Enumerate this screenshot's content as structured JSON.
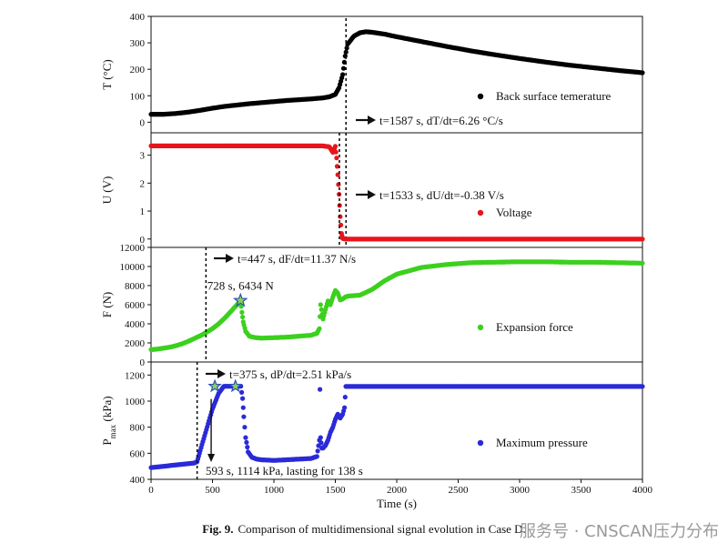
{
  "figure": {
    "caption_label": "Fig. 9.",
    "caption_text": "Comparison of multidimensional signal evolution in Case D.",
    "watermark": "服务号 · CNSCAN压力分布"
  },
  "chart_data": {
    "type": "scatter",
    "shared_x": {
      "label": "Time (s)",
      "range": [
        0,
        4000
      ],
      "ticks": [
        0,
        500,
        1000,
        1500,
        2000,
        2500,
        3000,
        3500,
        4000
      ],
      "tick_labels": [
        "0",
        "500",
        "1000",
        "1500",
        "2000",
        "2500",
        "3000",
        "3500",
        "4000"
      ]
    },
    "panels": [
      {
        "id": "temperature",
        "ylabel": "T (°C)",
        "ylim": [
          -40,
          400
        ],
        "ticks": [
          0,
          100,
          200,
          300,
          400
        ],
        "tick_labels": [
          "0",
          "100",
          "200",
          "300",
          "400"
        ],
        "color": "#000000",
        "legend": "Back surface temerature",
        "event": {
          "time": 1587,
          "label": "t=1587 s, dT/dt=6.26 °C/s"
        },
        "x": [
          0,
          100,
          200,
          300,
          400,
          500,
          600,
          700,
          800,
          900,
          1000,
          1100,
          1200,
          1300,
          1400,
          1450,
          1500,
          1530,
          1560,
          1580,
          1600,
          1650,
          1700,
          1750,
          1800,
          1900,
          2000,
          2200,
          2400,
          2600,
          2800,
          3000,
          3200,
          3400,
          3600,
          3800,
          4000
        ],
        "y": [
          30,
          30,
          33,
          38,
          45,
          53,
          60,
          65,
          70,
          74,
          78,
          82,
          85,
          88,
          92,
          96,
          105,
          130,
          180,
          250,
          295,
          325,
          338,
          342,
          340,
          333,
          323,
          305,
          287,
          270,
          255,
          241,
          228,
          216,
          206,
          196,
          187
        ]
      },
      {
        "id": "voltage",
        "ylabel": "U (V)",
        "ylim": [
          -0.3,
          3.8
        ],
        "ticks": [
          0,
          1,
          2,
          3
        ],
        "tick_labels": [
          "0",
          "1",
          "2",
          "3"
        ],
        "color": "#e8141c",
        "legend": "Voltage",
        "event": {
          "time": 1533,
          "label": "t=1533 s, dU/dt=-0.38 V/s"
        },
        "x": [
          0,
          100,
          200,
          300,
          400,
          500,
          600,
          700,
          800,
          900,
          1000,
          1100,
          1200,
          1300,
          1400,
          1450,
          1480,
          1500,
          1510,
          1520,
          1530,
          1540,
          1550,
          1560,
          1580,
          1600,
          1800,
          2000,
          2200,
          2400,
          2600,
          2800,
          3000,
          3200,
          3400,
          3600,
          3800,
          4000
        ],
        "y": [
          3.33,
          3.33,
          3.33,
          3.33,
          3.33,
          3.33,
          3.33,
          3.33,
          3.33,
          3.33,
          3.33,
          3.33,
          3.33,
          3.33,
          3.33,
          3.3,
          3.1,
          3.32,
          2.9,
          2.3,
          1.6,
          0.8,
          0.2,
          0.02,
          0.0,
          0.0,
          0.0,
          0.0,
          0.0,
          0.0,
          0.0,
          0.0,
          0.0,
          0.0,
          0.0,
          0.0,
          0.0,
          0.0
        ]
      },
      {
        "id": "force",
        "ylabel": "F (N)",
        "ylim": [
          0,
          12000
        ],
        "ticks": [
          0,
          2000,
          4000,
          6000,
          8000,
          10000,
          12000
        ],
        "tick_labels": [
          "0",
          "2000",
          "4000",
          "6000",
          "8000",
          "10000",
          "12000"
        ],
        "color": "#3cd01e",
        "legend": "Expansion force",
        "event": {
          "time": 447,
          "label": "t=447 s, dF/dt=11.37 N/s"
        },
        "peak": {
          "time": 728,
          "value": 6434,
          "label": "728 s, 6434 N"
        },
        "x": [
          0,
          50,
          100,
          150,
          200,
          250,
          300,
          350,
          400,
          450,
          500,
          550,
          600,
          650,
          700,
          728,
          740,
          750,
          770,
          800,
          850,
          900,
          1000,
          1100,
          1200,
          1300,
          1350,
          1370,
          1380,
          1400,
          1420,
          1440,
          1460,
          1480,
          1500,
          1520,
          1540,
          1560,
          1580,
          1600,
          1700,
          1800,
          1900,
          2000,
          2200,
          2400,
          2600,
          2800,
          3000,
          3200,
          3400,
          3600,
          3800,
          4000
        ],
        "y": [
          1300,
          1350,
          1450,
          1550,
          1700,
          1900,
          2150,
          2450,
          2750,
          3100,
          3500,
          4000,
          4600,
          5300,
          6000,
          6434,
          5200,
          4200,
          3200,
          2700,
          2550,
          2500,
          2550,
          2600,
          2700,
          2800,
          3000,
          3500,
          6000,
          4500,
          5500,
          6400,
          6000,
          6800,
          7500,
          7200,
          6500,
          6600,
          6800,
          6900,
          7000,
          7600,
          8500,
          9200,
          9900,
          10200,
          10400,
          10450,
          10500,
          10500,
          10450,
          10450,
          10400,
          10350
        ]
      },
      {
        "id": "pressure",
        "ylabel": "P",
        "ylabel_sub": "max",
        "ylabel_unit": " (kPa)",
        "ylim": [
          400,
          1300
        ],
        "ticks": [
          400,
          600,
          800,
          1000,
          1200
        ],
        "tick_labels": [
          "400",
          "600",
          "800",
          "1000",
          "1200"
        ],
        "color": "#2a2ad8",
        "legend": "Maximum pressure",
        "event": {
          "time": 375,
          "label": "t=375 s, dP/dt=2.51 kPa/s"
        },
        "plateau": {
          "start": 593,
          "end": 731,
          "value": 1114,
          "label": "593 s, 1114 kPa, lasting for 138 s"
        },
        "x": [
          0,
          50,
          100,
          150,
          200,
          250,
          300,
          350,
          375,
          400,
          450,
          500,
          550,
          593,
          620,
          660,
          700,
          731,
          745,
          755,
          770,
          790,
          820,
          860,
          900,
          1000,
          1100,
          1200,
          1300,
          1350,
          1370,
          1375,
          1380,
          1390,
          1400,
          1420,
          1440,
          1460,
          1480,
          1500,
          1520,
          1540,
          1560,
          1575,
          1585,
          1600,
          1800,
          2000,
          2200,
          2400,
          2600,
          2800,
          3000,
          3200,
          3400,
          3600,
          3800,
          4000
        ],
        "y": [
          490,
          495,
          500,
          505,
          510,
          515,
          520,
          525,
          535,
          620,
          780,
          940,
          1060,
          1114,
          1114,
          1114,
          1114,
          1114,
          1020,
          880,
          720,
          610,
          570,
          555,
          550,
          545,
          550,
          555,
          560,
          575,
          700,
          1090,
          720,
          640,
          640,
          660,
          700,
          760,
          800,
          860,
          900,
          870,
          900,
          950,
          1112,
          1112,
          1112,
          1112,
          1112,
          1112,
          1112,
          1112,
          1112,
          1112,
          1112,
          1112,
          1112,
          1112
        ]
      }
    ]
  }
}
